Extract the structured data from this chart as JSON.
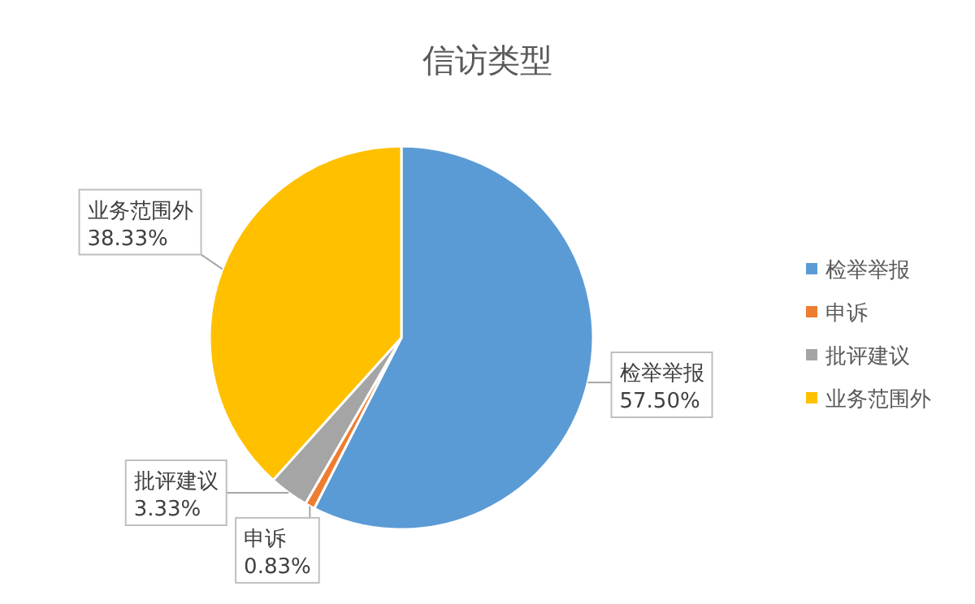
{
  "chart_data": {
    "type": "pie",
    "title": "信访类型",
    "categories": [
      "检举举报",
      "申诉",
      "批评建议",
      "业务范围外"
    ],
    "values": [
      57.5,
      0.83,
      3.33,
      38.33
    ],
    "value_labels": [
      "57.50%",
      "0.83%",
      "3.33%",
      "38.33%"
    ],
    "colors": [
      "#5b9bd5",
      "#ed7d31",
      "#a5a5a5",
      "#ffc000"
    ],
    "legend": "right"
  }
}
